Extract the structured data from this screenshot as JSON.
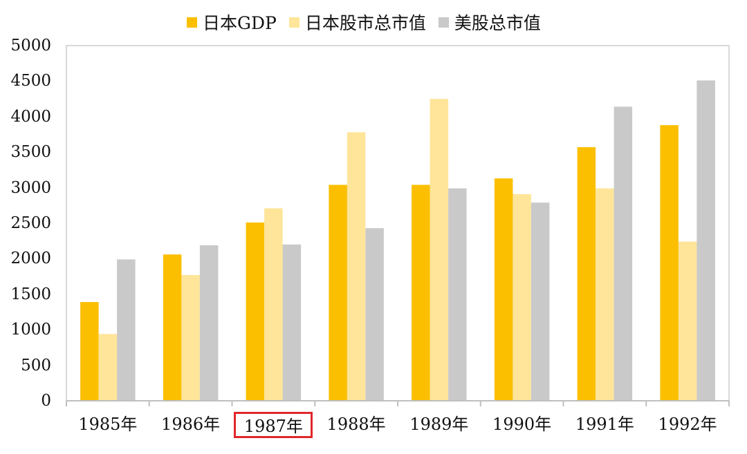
{
  "chart_data": {
    "type": "bar",
    "categories": [
      "1985年",
      "1986年",
      "1987年",
      "1988年",
      "1989年",
      "1990年",
      "1991年",
      "1992年"
    ],
    "series": [
      {
        "name": "日本GDP",
        "color": "#FBBF00",
        "values": [
          1390,
          2060,
          2510,
          3040,
          3040,
          3130,
          3570,
          3880
        ]
      },
      {
        "name": "日本股市总市值",
        "color": "#FEE599",
        "values": [
          940,
          1770,
          2710,
          3780,
          4250,
          2910,
          2990,
          2240
        ]
      },
      {
        "name": "美股总市值",
        "color": "#C9C9C9",
        "values": [
          1990,
          2190,
          2200,
          2430,
          2990,
          2790,
          4140,
          4510
        ]
      }
    ],
    "ylim": [
      0,
      5000
    ],
    "yticks": [
      "0",
      "500",
      "1000",
      "1500",
      "2000",
      "2500",
      "3000",
      "3500",
      "4000",
      "4500",
      "5000"
    ],
    "highlighted_category": "1987年",
    "highlight_color": "#e0262a",
    "grid": false,
    "legend_position": "top"
  }
}
